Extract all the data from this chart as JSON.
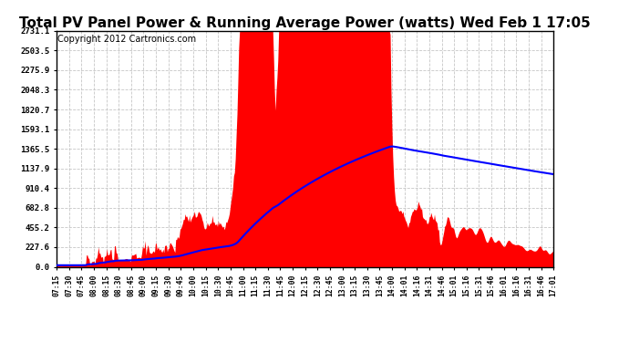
{
  "title": "Total PV Panel Power & Running Average Power (watts) Wed Feb 1 17:05",
  "copyright": "Copyright 2012 Cartronics.com",
  "ymin": 0.0,
  "ymax": 2731.1,
  "yticks": [
    0.0,
    227.6,
    455.2,
    682.8,
    910.4,
    1137.9,
    1365.5,
    1593.1,
    1820.7,
    2048.3,
    2275.9,
    2503.5,
    2731.1
  ],
  "xtick_labels": [
    "07:15",
    "07:30",
    "07:45",
    "08:00",
    "08:15",
    "08:30",
    "08:45",
    "09:00",
    "09:15",
    "09:30",
    "09:45",
    "10:00",
    "10:15",
    "10:30",
    "10:45",
    "11:00",
    "11:15",
    "11:30",
    "11:45",
    "12:00",
    "12:15",
    "12:30",
    "12:45",
    "13:00",
    "13:15",
    "13:30",
    "13:45",
    "14:00",
    "14:01",
    "14:16",
    "14:31",
    "14:46",
    "15:01",
    "15:16",
    "15:31",
    "15:46",
    "16:01",
    "16:16",
    "16:31",
    "16:46",
    "17:01"
  ],
  "fill_color": "#FF0000",
  "line_color": "#0000FF",
  "background_color": "#FFFFFF",
  "grid_color": "#C0C0C0",
  "title_fontsize": 11,
  "copyright_fontsize": 7
}
